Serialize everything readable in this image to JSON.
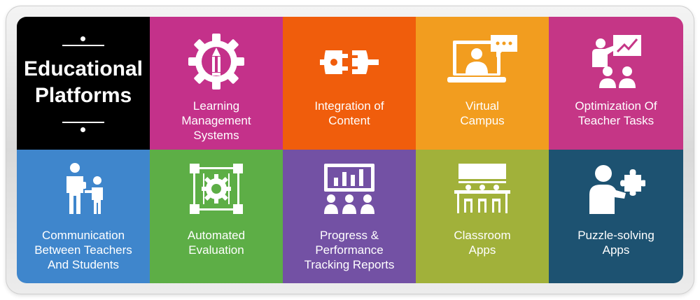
{
  "title": {
    "line1": "Educational",
    "line2": "Platforms"
  },
  "colors": {
    "black": "#000000",
    "pink": "#c4318a",
    "orange": "#f05d0c",
    "amber": "#f29d1f",
    "pink2": "#c53686",
    "blue": "#3f86cc",
    "green": "#5dae46",
    "purple": "#7351a4",
    "olive": "#a1b13a",
    "navy": "#1d5271"
  },
  "tiles": [
    {
      "icon": "gear-pencil-icon",
      "label": [
        "Learning",
        "Management",
        "Systems"
      ]
    },
    {
      "icon": "plug-connector-icon",
      "label": [
        "Integration of",
        "Content"
      ]
    },
    {
      "icon": "laptop-video-chat-icon",
      "label": [
        "Virtual",
        "Campus"
      ]
    },
    {
      "icon": "teacher-presentation-icon",
      "label": [
        "Optimization Of",
        "Teacher Tasks"
      ]
    },
    {
      "icon": "teacher-student-icon",
      "label": [
        "Communication",
        "Between Teachers",
        "And Students"
      ]
    },
    {
      "icon": "gear-frame-icon",
      "label": [
        "Automated",
        "Evaluation"
      ]
    },
    {
      "icon": "chart-audience-icon",
      "label": [
        "Progress &",
        "Performance",
        "Tracking Reports"
      ]
    },
    {
      "icon": "classroom-desks-icon",
      "label": [
        "Classroom",
        "Apps"
      ]
    },
    {
      "icon": "person-puzzle-icon",
      "label": [
        "Puzzle-solving",
        "Apps"
      ]
    }
  ]
}
